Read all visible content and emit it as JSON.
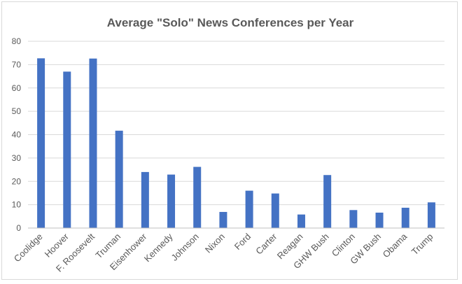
{
  "chart_data": {
    "type": "bar",
    "title": "Average \"Solo\" News Conferences per Year",
    "xlabel": "",
    "ylabel": "",
    "categories": [
      "Coolidge",
      "Hoover",
      "F. Roosevelt",
      "Truman",
      "Eisenhower",
      "Kennedy",
      "Johnson",
      "Nixon",
      "Ford",
      "Carter",
      "Reagan",
      "GHW Bush",
      "Clinton",
      "GW Bush",
      "Obama",
      "Trump"
    ],
    "values": [
      72.7,
      67,
      72.6,
      41.7,
      24,
      22.9,
      26.2,
      6.9,
      16,
      14.8,
      5.8,
      22.7,
      7.7,
      6.6,
      8.7,
      11
    ],
    "ylim": [
      0,
      80
    ],
    "yticks": [
      0,
      10,
      20,
      30,
      40,
      50,
      60,
      70,
      80
    ],
    "grid": true,
    "legend": "none",
    "bar_color": "#4472c4"
  }
}
